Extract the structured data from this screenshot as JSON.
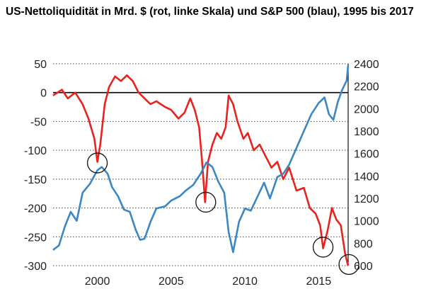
{
  "chart_data": {
    "type": "line",
    "title": "US-Nettoliquidität in Mrd. $ (rot, linke Skala) und S&P 500 (blau), 1995 bis 2017",
    "xlim": [
      1997,
      2017
    ],
    "x_ticks": [
      "2000",
      "2005",
      "2010",
      "2015"
    ],
    "x_tick_values": [
      2000,
      2005,
      2010,
      2015
    ],
    "left_axis": {
      "ylim": [
        -300,
        50
      ],
      "ticks": [
        50,
        0,
        -50,
        -100,
        -150,
        -200,
        -250,
        -300
      ],
      "labels": [
        "50",
        "0",
        "-50",
        "-100",
        "-150",
        "-200",
        "-250",
        "-300"
      ]
    },
    "right_axis": {
      "ylim": [
        600,
        2400
      ],
      "ticks": [
        2400,
        2200,
        2000,
        1800,
        1600,
        1400,
        1200,
        1000,
        800,
        600
      ],
      "labels": [
        "2400",
        "2200",
        "2000",
        "1800",
        "1600",
        "1400",
        "1200",
        "1000",
        "800",
        "600"
      ]
    },
    "zero_line": 0,
    "series": [
      {
        "name": "US-Nettoliquidität",
        "axis": "left",
        "color": "#e8231f",
        "points": [
          [
            1997,
            -5
          ],
          [
            1997.6,
            5
          ],
          [
            1998,
            -10
          ],
          [
            1998.5,
            0
          ],
          [
            1999,
            -20
          ],
          [
            1999.4,
            -45
          ],
          [
            1999.8,
            -80
          ],
          [
            2000,
            -120
          ],
          [
            2000.2,
            -90
          ],
          [
            2000.5,
            -20
          ],
          [
            2000.8,
            10
          ],
          [
            2001.2,
            28
          ],
          [
            2001.6,
            20
          ],
          [
            2002,
            30
          ],
          [
            2002.4,
            20
          ],
          [
            2002.8,
            0
          ],
          [
            2003.2,
            -10
          ],
          [
            2003.6,
            -20
          ],
          [
            2004,
            -15
          ],
          [
            2004.6,
            -25
          ],
          [
            2005,
            -30
          ],
          [
            2005.5,
            -45
          ],
          [
            2005.9,
            -35
          ],
          [
            2006.3,
            -10
          ],
          [
            2006.6,
            -30
          ],
          [
            2006.9,
            -60
          ],
          [
            2007.1,
            -120
          ],
          [
            2007.3,
            -190
          ],
          [
            2007.5,
            -120
          ],
          [
            2007.8,
            -90
          ],
          [
            2008.1,
            -70
          ],
          [
            2008.4,
            -80
          ],
          [
            2008.7,
            -60
          ],
          [
            2008.9,
            -5
          ],
          [
            2009.2,
            -20
          ],
          [
            2009.5,
            -50
          ],
          [
            2009.9,
            -80
          ],
          [
            2010.2,
            -70
          ],
          [
            2010.6,
            -100
          ],
          [
            2011,
            -90
          ],
          [
            2011.4,
            -110
          ],
          [
            2011.8,
            -130
          ],
          [
            2012.2,
            -120
          ],
          [
            2012.6,
            -150
          ],
          [
            2013,
            -130
          ],
          [
            2013.5,
            -170
          ],
          [
            2014,
            -165
          ],
          [
            2014.4,
            -200
          ],
          [
            2014.8,
            -210
          ],
          [
            2015.1,
            -230
          ],
          [
            2015.3,
            -270
          ],
          [
            2015.6,
            -240
          ],
          [
            2015.9,
            -200
          ],
          [
            2016.2,
            -220
          ],
          [
            2016.5,
            -230
          ],
          [
            2016.8,
            -280
          ],
          [
            2017,
            -300
          ]
        ]
      },
      {
        "name": "S&P 500",
        "axis": "right",
        "color": "#3b87c4",
        "points": [
          [
            1997,
            740
          ],
          [
            1997.4,
            780
          ],
          [
            1997.8,
            950
          ],
          [
            1998.2,
            1080
          ],
          [
            1998.6,
            1000
          ],
          [
            1999,
            1250
          ],
          [
            1999.5,
            1330
          ],
          [
            2000,
            1450
          ],
          [
            2000.3,
            1480
          ],
          [
            2000.7,
            1420
          ],
          [
            2001,
            1300
          ],
          [
            2001.4,
            1220
          ],
          [
            2001.8,
            1100
          ],
          [
            2002.2,
            1080
          ],
          [
            2002.6,
            920
          ],
          [
            2002.9,
            830
          ],
          [
            2003.2,
            840
          ],
          [
            2003.6,
            990
          ],
          [
            2004,
            1110
          ],
          [
            2004.6,
            1130
          ],
          [
            2005,
            1180
          ],
          [
            2005.6,
            1220
          ],
          [
            2006,
            1270
          ],
          [
            2006.5,
            1320
          ],
          [
            2007,
            1420
          ],
          [
            2007.4,
            1520
          ],
          [
            2007.8,
            1480
          ],
          [
            2008.2,
            1350
          ],
          [
            2008.6,
            1250
          ],
          [
            2008.9,
            900
          ],
          [
            2009.2,
            720
          ],
          [
            2009.6,
            990
          ],
          [
            2010,
            1110
          ],
          [
            2010.4,
            1090
          ],
          [
            2010.8,
            1200
          ],
          [
            2011.3,
            1340
          ],
          [
            2011.7,
            1200
          ],
          [
            2012.2,
            1390
          ],
          [
            2012.6,
            1420
          ],
          [
            2013,
            1500
          ],
          [
            2013.5,
            1650
          ],
          [
            2014,
            1800
          ],
          [
            2014.5,
            1950
          ],
          [
            2015,
            2050
          ],
          [
            2015.4,
            2100
          ],
          [
            2015.7,
            1950
          ],
          [
            2016,
            1900
          ],
          [
            2016.3,
            2060
          ],
          [
            2016.6,
            2170
          ],
          [
            2016.9,
            2250
          ],
          [
            2017,
            2390
          ]
        ]
      }
    ],
    "circles": [
      {
        "x": 2000,
        "left_value": -122
      },
      {
        "x": 2007.35,
        "left_value": -190
      },
      {
        "x": 2015.3,
        "left_value": -268
      },
      {
        "x": 2017.05,
        "left_value": -298
      }
    ]
  }
}
